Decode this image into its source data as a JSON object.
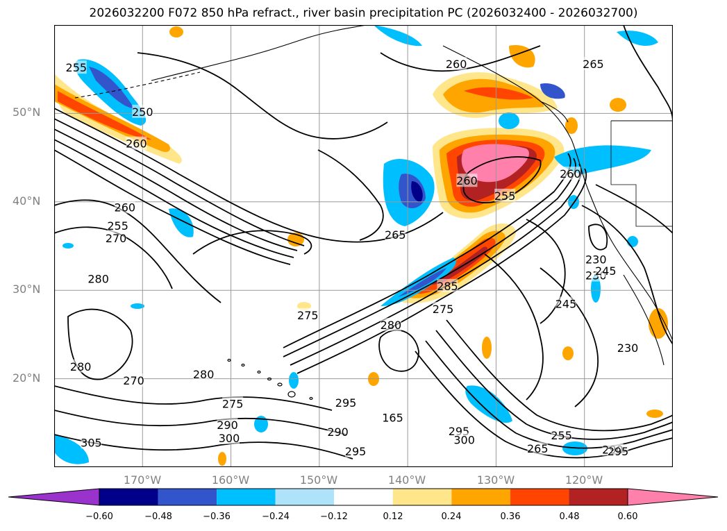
{
  "title": "2026032200 F072 850 hPa refract., river basin precipitation PC (2026032400 - 2026032700)",
  "map": {
    "extent": {
      "lon_min": -180,
      "lon_max": -110,
      "lat_min": 10,
      "lat_max": 60
    },
    "lat_ticks": [
      {
        "lat": 50,
        "label": "50°N"
      },
      {
        "lat": 40,
        "label": "40°N"
      },
      {
        "lat": 30,
        "label": "30°N"
      },
      {
        "lat": 20,
        "label": "20°N"
      }
    ],
    "lon_ticks": [
      {
        "lon": -170,
        "label": "170°W"
      },
      {
        "lon": -160,
        "label": "160°W"
      },
      {
        "lon": -150,
        "label": "150°W"
      },
      {
        "lon": -140,
        "label": "140°W"
      },
      {
        "lon": -130,
        "label": "130°W"
      },
      {
        "lon": -120,
        "label": "120°W"
      }
    ],
    "contour_labels": [
      {
        "text": "255",
        "lon": -177.5,
        "lat": 55.2
      },
      {
        "text": "250",
        "lon": -170.0,
        "lat": 50.2
      },
      {
        "text": "260",
        "lon": -170.7,
        "lat": 46.6
      },
      {
        "text": "260",
        "lon": -134.5,
        "lat": 55.6
      },
      {
        "text": "265",
        "lon": -119.0,
        "lat": 55.6
      },
      {
        "text": "260",
        "lon": -133.3,
        "lat": 42.4
      },
      {
        "text": "255",
        "lon": -129.0,
        "lat": 40.7
      },
      {
        "text": "260",
        "lon": -121.6,
        "lat": 43.2
      },
      {
        "text": "265",
        "lon": -141.4,
        "lat": 36.3
      },
      {
        "text": "260",
        "lon": -172.0,
        "lat": 39.4
      },
      {
        "text": "255",
        "lon": -172.8,
        "lat": 37.3
      },
      {
        "text": "270",
        "lon": -173.0,
        "lat": 35.9
      },
      {
        "text": "280",
        "lon": -175.0,
        "lat": 31.3
      },
      {
        "text": "275",
        "lon": -151.3,
        "lat": 27.2
      },
      {
        "text": "280",
        "lon": -141.9,
        "lat": 26.1
      },
      {
        "text": "275",
        "lon": -136.0,
        "lat": 27.9
      },
      {
        "text": "285",
        "lon": -135.5,
        "lat": 30.5
      },
      {
        "text": "245",
        "lon": -122.1,
        "lat": 28.5
      },
      {
        "text": "230",
        "lon": -118.7,
        "lat": 33.5
      },
      {
        "text": "230",
        "lon": -118.7,
        "lat": 31.7
      },
      {
        "text": "245",
        "lon": -117.6,
        "lat": 32.2
      },
      {
        "text": "230",
        "lon": -115.1,
        "lat": 23.5
      },
      {
        "text": "280",
        "lon": -163.1,
        "lat": 20.5
      },
      {
        "text": "270",
        "lon": -171.0,
        "lat": 19.8
      },
      {
        "text": "280",
        "lon": -177.0,
        "lat": 21.4
      },
      {
        "text": "275",
        "lon": -159.8,
        "lat": 17.2
      },
      {
        "text": "295",
        "lon": -147.0,
        "lat": 17.3
      },
      {
        "text": "290",
        "lon": -160.4,
        "lat": 14.8
      },
      {
        "text": "290",
        "lon": -147.9,
        "lat": 14.0
      },
      {
        "text": "295",
        "lon": -145.9,
        "lat": 11.8
      },
      {
        "text": "300",
        "lon": -160.2,
        "lat": 13.3
      },
      {
        "text": "305",
        "lon": -175.8,
        "lat": 12.8
      },
      {
        "text": "295",
        "lon": -134.2,
        "lat": 14.1
      },
      {
        "text": "300",
        "lon": -133.6,
        "lat": 13.1
      },
      {
        "text": "265",
        "lon": -125.3,
        "lat": 12.1
      },
      {
        "text": "255",
        "lon": -122.6,
        "lat": 13.6
      },
      {
        "text": "290",
        "lon": -116.8,
        "lat": 12.0
      },
      {
        "text": "295",
        "lon": -116.2,
        "lat": 11.8
      },
      {
        "text": "165",
        "lon": -141.7,
        "lat": 15.6
      }
    ]
  },
  "colorbar": {
    "colors": [
      "#9933cc",
      "#00008b",
      "#3355cc",
      "#00bfff",
      "#aee3fa",
      "#ffffff",
      "#ffe68a",
      "#ffa500",
      "#ff4500",
      "#b22222",
      "#ff80aa"
    ],
    "ticks": [
      "−0.60",
      "−0.48",
      "−0.36",
      "−0.24",
      "−0.12",
      "0.12",
      "0.24",
      "0.36",
      "0.48",
      "0.60"
    ]
  }
}
